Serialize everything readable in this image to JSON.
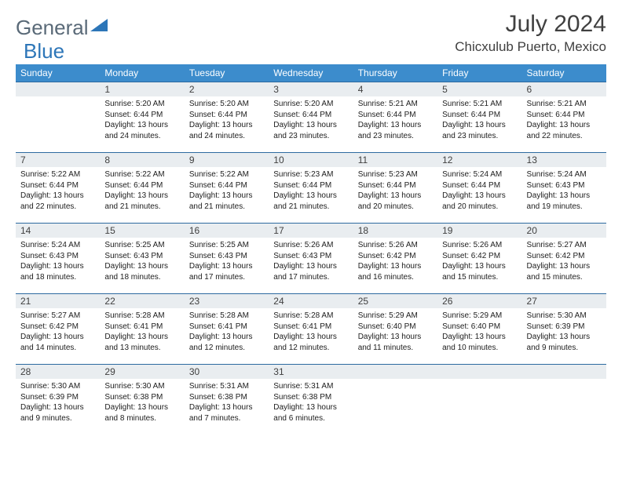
{
  "brand": {
    "part1": "General",
    "part2": "Blue"
  },
  "title": "July 2024",
  "location": "Chicxulub Puerto, Mexico",
  "colors": {
    "header_bg": "#3c8ccc",
    "daynum_bg": "#e9edf0",
    "rule": "#2d6aa0",
    "text": "#404040"
  },
  "daysOfWeek": [
    "Sunday",
    "Monday",
    "Tuesday",
    "Wednesday",
    "Thursday",
    "Friday",
    "Saturday"
  ],
  "startOffset": 1,
  "daysInMonth": 31,
  "entries": {
    "1": {
      "sunrise": "5:20 AM",
      "sunset": "6:44 PM",
      "daylight": "13 hours and 24 minutes."
    },
    "2": {
      "sunrise": "5:20 AM",
      "sunset": "6:44 PM",
      "daylight": "13 hours and 24 minutes."
    },
    "3": {
      "sunrise": "5:20 AM",
      "sunset": "6:44 PM",
      "daylight": "13 hours and 23 minutes."
    },
    "4": {
      "sunrise": "5:21 AM",
      "sunset": "6:44 PM",
      "daylight": "13 hours and 23 minutes."
    },
    "5": {
      "sunrise": "5:21 AM",
      "sunset": "6:44 PM",
      "daylight": "13 hours and 23 minutes."
    },
    "6": {
      "sunrise": "5:21 AM",
      "sunset": "6:44 PM",
      "daylight": "13 hours and 22 minutes."
    },
    "7": {
      "sunrise": "5:22 AM",
      "sunset": "6:44 PM",
      "daylight": "13 hours and 22 minutes."
    },
    "8": {
      "sunrise": "5:22 AM",
      "sunset": "6:44 PM",
      "daylight": "13 hours and 21 minutes."
    },
    "9": {
      "sunrise": "5:22 AM",
      "sunset": "6:44 PM",
      "daylight": "13 hours and 21 minutes."
    },
    "10": {
      "sunrise": "5:23 AM",
      "sunset": "6:44 PM",
      "daylight": "13 hours and 21 minutes."
    },
    "11": {
      "sunrise": "5:23 AM",
      "sunset": "6:44 PM",
      "daylight": "13 hours and 20 minutes."
    },
    "12": {
      "sunrise": "5:24 AM",
      "sunset": "6:44 PM",
      "daylight": "13 hours and 20 minutes."
    },
    "13": {
      "sunrise": "5:24 AM",
      "sunset": "6:43 PM",
      "daylight": "13 hours and 19 minutes."
    },
    "14": {
      "sunrise": "5:24 AM",
      "sunset": "6:43 PM",
      "daylight": "13 hours and 18 minutes."
    },
    "15": {
      "sunrise": "5:25 AM",
      "sunset": "6:43 PM",
      "daylight": "13 hours and 18 minutes."
    },
    "16": {
      "sunrise": "5:25 AM",
      "sunset": "6:43 PM",
      "daylight": "13 hours and 17 minutes."
    },
    "17": {
      "sunrise": "5:26 AM",
      "sunset": "6:43 PM",
      "daylight": "13 hours and 17 minutes."
    },
    "18": {
      "sunrise": "5:26 AM",
      "sunset": "6:42 PM",
      "daylight": "13 hours and 16 minutes."
    },
    "19": {
      "sunrise": "5:26 AM",
      "sunset": "6:42 PM",
      "daylight": "13 hours and 15 minutes."
    },
    "20": {
      "sunrise": "5:27 AM",
      "sunset": "6:42 PM",
      "daylight": "13 hours and 15 minutes."
    },
    "21": {
      "sunrise": "5:27 AM",
      "sunset": "6:42 PM",
      "daylight": "13 hours and 14 minutes."
    },
    "22": {
      "sunrise": "5:28 AM",
      "sunset": "6:41 PM",
      "daylight": "13 hours and 13 minutes."
    },
    "23": {
      "sunrise": "5:28 AM",
      "sunset": "6:41 PM",
      "daylight": "13 hours and 12 minutes."
    },
    "24": {
      "sunrise": "5:28 AM",
      "sunset": "6:41 PM",
      "daylight": "13 hours and 12 minutes."
    },
    "25": {
      "sunrise": "5:29 AM",
      "sunset": "6:40 PM",
      "daylight": "13 hours and 11 minutes."
    },
    "26": {
      "sunrise": "5:29 AM",
      "sunset": "6:40 PM",
      "daylight": "13 hours and 10 minutes."
    },
    "27": {
      "sunrise": "5:30 AM",
      "sunset": "6:39 PM",
      "daylight": "13 hours and 9 minutes."
    },
    "28": {
      "sunrise": "5:30 AM",
      "sunset": "6:39 PM",
      "daylight": "13 hours and 9 minutes."
    },
    "29": {
      "sunrise": "5:30 AM",
      "sunset": "6:38 PM",
      "daylight": "13 hours and 8 minutes."
    },
    "30": {
      "sunrise": "5:31 AM",
      "sunset": "6:38 PM",
      "daylight": "13 hours and 7 minutes."
    },
    "31": {
      "sunrise": "5:31 AM",
      "sunset": "6:38 PM",
      "daylight": "13 hours and 6 minutes."
    }
  },
  "labels": {
    "sunrise": "Sunrise:",
    "sunset": "Sunset:",
    "daylight": "Daylight:"
  }
}
